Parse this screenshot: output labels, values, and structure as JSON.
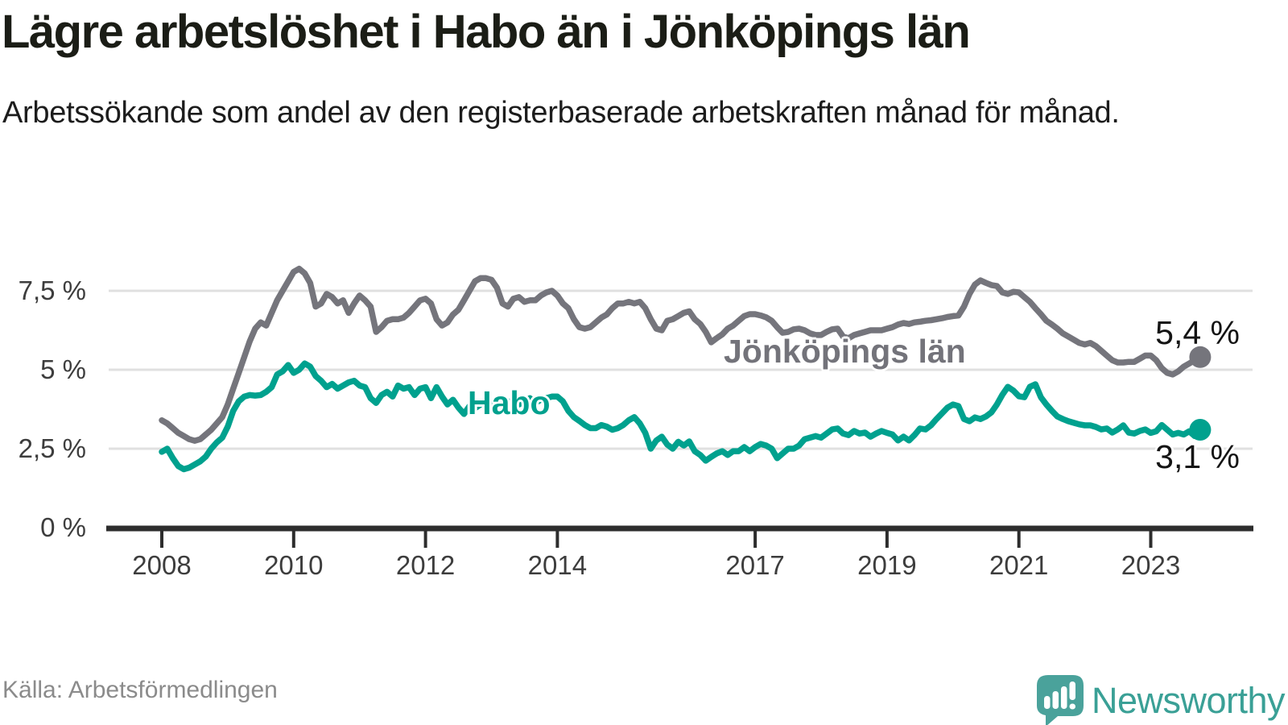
{
  "chart_data": {
    "type": "line",
    "title": "Lägre arbetslöshet i Habo än i Jönköpings län",
    "subtitle": "Arbetssökande som andel av den registerbaserade arbetskraften månad för månad.",
    "source": "Källa: Arbetsförmedlingen",
    "frequency": "monthly",
    "x_start": {
      "year": 2008,
      "month": 1
    },
    "x_end": {
      "year": 2023,
      "month": 10
    },
    "x_ticks": [
      "2008",
      "2010",
      "2012",
      "2014",
      "2017",
      "2019",
      "2021",
      "2023"
    ],
    "y_ticks": [
      {
        "value": 7.5,
        "label": "7,5 %"
      },
      {
        "value": 5,
        "label": "5 %"
      },
      {
        "value": 2.5,
        "label": "2,5 %"
      },
      {
        "value": 0,
        "label": "0 %"
      }
    ],
    "ylim": [
      0,
      8.6
    ],
    "grid": true,
    "legend_position": "inline-labels",
    "series": [
      {
        "name": "Jönköpings län",
        "color": "#75757c",
        "end_label": "5,4 %",
        "last_value": 5.4,
        "values": [
          3.4,
          3.3,
          3.15,
          3.0,
          2.9,
          2.8,
          2.75,
          2.8,
          2.95,
          3.1,
          3.3,
          3.5,
          3.9,
          4.4,
          4.9,
          5.4,
          5.9,
          6.3,
          6.5,
          6.4,
          6.8,
          7.2,
          7.5,
          7.8,
          8.1,
          8.2,
          8.05,
          7.75,
          7.0,
          7.1,
          7.4,
          7.3,
          7.1,
          7.2,
          6.8,
          7.1,
          7.35,
          7.2,
          7.0,
          6.2,
          6.35,
          6.55,
          6.6,
          6.6,
          6.65,
          6.8,
          7.0,
          7.2,
          7.25,
          7.1,
          6.6,
          6.4,
          6.5,
          6.75,
          6.9,
          7.2,
          7.5,
          7.8,
          7.9,
          7.9,
          7.85,
          7.6,
          7.1,
          7.0,
          7.25,
          7.3,
          7.15,
          7.2,
          7.2,
          7.35,
          7.45,
          7.5,
          7.35,
          7.1,
          6.95,
          6.6,
          6.35,
          6.3,
          6.35,
          6.5,
          6.65,
          6.75,
          6.95,
          7.1,
          7.1,
          7.15,
          7.1,
          7.15,
          6.95,
          6.6,
          6.3,
          6.25,
          6.55,
          6.6,
          6.7,
          6.8,
          6.85,
          6.6,
          6.45,
          6.2,
          5.87,
          6.0,
          6.12,
          6.3,
          6.4,
          6.55,
          6.7,
          6.76,
          6.76,
          6.72,
          6.66,
          6.55,
          6.35,
          6.17,
          6.2,
          6.28,
          6.3,
          6.25,
          6.15,
          6.1,
          6.1,
          6.2,
          6.28,
          6.3,
          6.05,
          6.0,
          6.1,
          6.15,
          6.2,
          6.25,
          6.25,
          6.25,
          6.3,
          6.35,
          6.43,
          6.48,
          6.45,
          6.5,
          6.52,
          6.55,
          6.57,
          6.6,
          6.63,
          6.67,
          6.7,
          6.72,
          7.0,
          7.4,
          7.7,
          7.83,
          7.75,
          7.68,
          7.65,
          7.45,
          7.4,
          7.47,
          7.45,
          7.3,
          7.15,
          6.95,
          6.76,
          6.55,
          6.43,
          6.3,
          6.15,
          6.05,
          5.95,
          5.85,
          5.8,
          5.85,
          5.75,
          5.6,
          5.45,
          5.3,
          5.23,
          5.23,
          5.25,
          5.25,
          5.35,
          5.45,
          5.45,
          5.3,
          5.05,
          4.9,
          4.85,
          4.95,
          5.1,
          5.2,
          5.3,
          5.4
        ]
      },
      {
        "name": "Habo",
        "color": "#00a18e",
        "end_label": "3,1 %",
        "last_value": 3.1,
        "values": [
          2.4,
          2.5,
          2.2,
          1.95,
          1.85,
          1.9,
          2.0,
          2.1,
          2.25,
          2.5,
          2.7,
          2.85,
          3.2,
          3.7,
          4.0,
          4.15,
          4.2,
          4.18,
          4.2,
          4.3,
          4.45,
          4.85,
          4.95,
          5.15,
          4.9,
          5.0,
          5.2,
          5.1,
          4.8,
          4.65,
          4.45,
          4.55,
          4.4,
          4.5,
          4.6,
          4.65,
          4.5,
          4.45,
          4.1,
          3.95,
          4.2,
          4.3,
          4.15,
          4.5,
          4.4,
          4.45,
          4.2,
          4.4,
          4.45,
          4.1,
          4.45,
          4.15,
          3.9,
          4.05,
          3.8,
          3.6,
          3.85,
          3.78,
          3.9,
          4.05,
          3.95,
          3.9,
          4.1,
          3.95,
          4.05,
          3.9,
          4.0,
          4.1,
          3.95,
          4.05,
          4.1,
          4.15,
          4.15,
          4.0,
          3.7,
          3.5,
          3.38,
          3.25,
          3.15,
          3.15,
          3.25,
          3.2,
          3.1,
          3.15,
          3.25,
          3.4,
          3.5,
          3.3,
          3.0,
          2.5,
          2.76,
          2.88,
          2.63,
          2.5,
          2.72,
          2.6,
          2.73,
          2.42,
          2.3,
          2.12,
          2.24,
          2.35,
          2.42,
          2.3,
          2.42,
          2.42,
          2.55,
          2.42,
          2.55,
          2.65,
          2.6,
          2.5,
          2.2,
          2.35,
          2.5,
          2.5,
          2.6,
          2.8,
          2.85,
          2.9,
          2.85,
          2.98,
          3.11,
          3.14,
          2.98,
          2.93,
          3.06,
          2.98,
          3.01,
          2.88,
          2.98,
          3.06,
          3.0,
          2.95,
          2.76,
          2.88,
          2.76,
          2.93,
          3.14,
          3.11,
          3.24,
          3.44,
          3.62,
          3.8,
          3.9,
          3.85,
          3.44,
          3.37,
          3.49,
          3.44,
          3.52,
          3.65,
          3.9,
          4.21,
          4.46,
          4.34,
          4.16,
          4.13,
          4.46,
          4.54,
          4.13,
          3.9,
          3.7,
          3.52,
          3.44,
          3.37,
          3.32,
          3.27,
          3.24,
          3.24,
          3.19,
          3.11,
          3.14,
          3.01,
          3.11,
          3.24,
          3.01,
          2.98,
          3.06,
          3.11,
          3.0,
          3.05,
          3.25,
          3.1,
          2.95,
          3.0,
          2.95,
          3.05,
          2.9,
          3.1
        ]
      }
    ],
    "colors": {
      "grid": "#e0e0e0",
      "axis": "#2d2d2d",
      "tick_text": "#3d3d3d"
    }
  },
  "footer": {
    "brand": "Newsworthy",
    "brand_color": "#3aa096"
  },
  "icons": {
    "logo": "newsworthy-speech-bubble-bar-chart-icon"
  }
}
